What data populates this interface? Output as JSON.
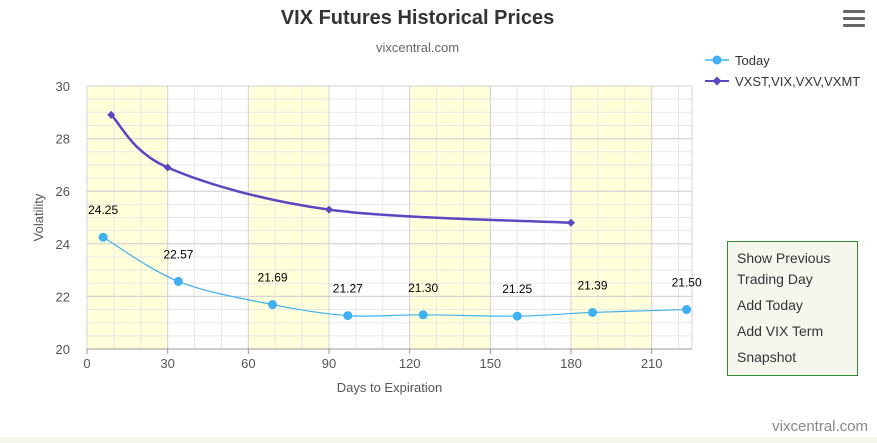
{
  "header": {
    "title": "VIX Futures Historical Prices",
    "subtitle": "vixcentral.com"
  },
  "menu": {
    "icon": "hamburger-menu-icon"
  },
  "legend": {
    "items": [
      {
        "label": "Today",
        "color": "#3fb0f0",
        "marker": "circle"
      },
      {
        "label": "VXST,VIX,VXV,VXMT",
        "color": "#5a48c0",
        "marker": "diamond"
      }
    ]
  },
  "side_panel": {
    "links": [
      "Show Previous Trading Day",
      "Add Today",
      "Add VIX Term",
      "Snapshot"
    ]
  },
  "footer": {
    "credit": "vixcentral.com"
  },
  "chart_data": {
    "type": "line",
    "title": "VIX Futures Historical Prices",
    "subtitle": "vixcentral.com",
    "xlabel": "Days to Expiration",
    "ylabel": "Volatility",
    "xlim": [
      0,
      225
    ],
    "ylim": [
      20,
      30
    ],
    "xticks": [
      0,
      30,
      60,
      90,
      120,
      150,
      180,
      210
    ],
    "yticks": [
      20,
      22,
      24,
      26,
      28,
      30
    ],
    "grid": true,
    "legend_position": "top-right",
    "shaded_bands": [
      [
        0,
        30
      ],
      [
        60,
        90
      ],
      [
        120,
        150
      ],
      [
        180,
        210
      ]
    ],
    "band_color": "#ffffd9",
    "series": [
      {
        "name": "Today",
        "color": "#3fb0f0",
        "marker": "circle",
        "show_labels": true,
        "x": [
          6,
          34,
          69,
          97,
          125,
          160,
          188,
          223
        ],
        "y": [
          24.25,
          22.57,
          21.69,
          21.27,
          21.3,
          21.25,
          21.39,
          21.5
        ],
        "labels": [
          "24.25",
          "22.57",
          "21.69",
          "21.27",
          "21.30",
          "21.25",
          "21.39",
          "21.50"
        ]
      },
      {
        "name": "VXST,VIX,VXV,VXMT",
        "color": "#5a48c0",
        "marker": "diamond",
        "show_labels": false,
        "x": [
          9,
          30,
          90,
          180
        ],
        "y": [
          28.9,
          26.9,
          25.3,
          24.8
        ]
      }
    ]
  }
}
